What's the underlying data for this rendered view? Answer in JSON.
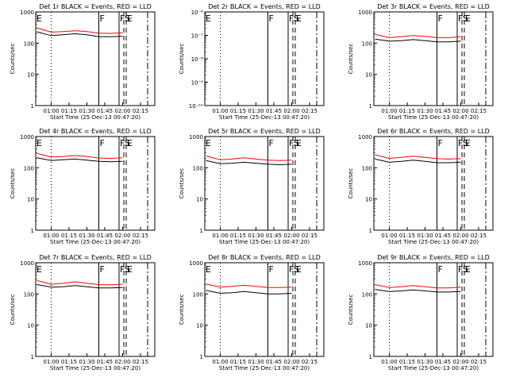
{
  "x_ticks": [
    "01:00",
    "01:15",
    "01:30",
    "01:45",
    "02:00",
    "02:15"
  ],
  "xlabel": "Start Time (25-Dec-13 00:47:20)",
  "ylabel": "Counts/sec",
  "colors": {
    "events": "#000000",
    "lld": "#ff0000",
    "axes": "#000000"
  },
  "chart_data": [
    {
      "type": "line",
      "title": "Det 1r BLACK = Events, RED = LLD",
      "xlabel": "Start Time (25-Dec-13 00:47:20)",
      "ylabel": "Counts/sec",
      "yscale": "log",
      "ylim": [
        1,
        1000
      ],
      "y_ticks": [
        "1",
        "10",
        "100",
        "1000"
      ],
      "markers": [
        {
          "label": "E",
          "x": "00:47"
        },
        {
          "label": "F",
          "x": "01:40"
        },
        {
          "label": "F",
          "x": "01:57"
        },
        {
          "label": "S",
          "x": "02:01"
        },
        {
          "label": "E",
          "x": "02:03"
        }
      ],
      "series": [
        {
          "name": "Events",
          "color": "#000000",
          "x": [
            "00:48",
            "01:00",
            "01:10",
            "01:20",
            "01:30",
            "01:40",
            "01:50",
            "02:00"
          ],
          "values": [
            230,
            175,
            185,
            200,
            185,
            160,
            160,
            165
          ]
        },
        {
          "name": "LLD",
          "color": "#ff0000",
          "x": [
            "00:48",
            "01:00",
            "01:10",
            "01:20",
            "01:30",
            "01:40",
            "01:50",
            "02:00"
          ],
          "values": [
            310,
            225,
            235,
            250,
            235,
            210,
            205,
            215
          ]
        }
      ]
    },
    {
      "type": "line",
      "title": "Det 2r BLACK = Events, RED = LLD",
      "xlabel": "Start Time (25-Dec-13 00:47:20)",
      "ylabel": "Counts/sec",
      "yscale": "log",
      "ylim": [
        1e-10,
        1e-06
      ],
      "y_ticks": [
        "10⁻¹⁰",
        "10⁻⁹",
        "10⁻⁸",
        "10⁻⁷",
        "10⁻⁶"
      ],
      "markers": [
        {
          "label": "E",
          "x": "00:47"
        },
        {
          "label": "F",
          "x": "01:40"
        },
        {
          "label": "F",
          "x": "01:57"
        },
        {
          "label": "S",
          "x": "02:01"
        },
        {
          "label": "E",
          "x": "02:03"
        }
      ],
      "series": []
    },
    {
      "type": "line",
      "title": "Det 3r BLACK = Events, RED = LLD",
      "xlabel": "Start Time (25-Dec-13 00:47:20)",
      "ylabel": "Counts/sec",
      "yscale": "log",
      "ylim": [
        1,
        1000
      ],
      "y_ticks": [
        "1",
        "10",
        "100",
        "1000"
      ],
      "markers": [
        {
          "label": "F",
          "x": "01:40"
        },
        {
          "label": "F",
          "x": "01:57"
        },
        {
          "label": "S",
          "x": "02:01"
        },
        {
          "label": "E",
          "x": "02:03"
        }
      ],
      "series": [
        {
          "name": "Events",
          "color": "#000000",
          "x": [
            "00:48",
            "01:00",
            "01:10",
            "01:20",
            "01:30",
            "01:40",
            "01:50",
            "02:00"
          ],
          "values": [
            135,
            115,
            120,
            130,
            120,
            110,
            110,
            115
          ]
        },
        {
          "name": "LLD",
          "color": "#ff0000",
          "x": [
            "00:48",
            "01:00",
            "01:10",
            "01:20",
            "01:30",
            "01:40",
            "01:50",
            "02:00"
          ],
          "values": [
            190,
            150,
            160,
            175,
            165,
            150,
            150,
            160
          ]
        }
      ]
    },
    {
      "type": "line",
      "title": "Det 4r BLACK = Events, RED = LLD",
      "xlabel": "Start Time (25-Dec-13 00:47:20)",
      "ylabel": "Counts/sec",
      "yscale": "log",
      "ylim": [
        1,
        1000
      ],
      "y_ticks": [
        "1",
        "10",
        "100",
        "1000"
      ],
      "markers": [
        {
          "label": "E",
          "x": "00:47"
        },
        {
          "label": "F",
          "x": "01:40"
        },
        {
          "label": "F",
          "x": "01:57"
        },
        {
          "label": "S",
          "x": "02:01"
        },
        {
          "label": "E",
          "x": "02:03"
        }
      ],
      "series": [
        {
          "name": "Events",
          "color": "#000000",
          "x": [
            "00:48",
            "01:00",
            "01:10",
            "01:20",
            "01:30",
            "01:40",
            "01:50",
            "02:00"
          ],
          "values": [
            210,
            170,
            180,
            190,
            175,
            160,
            155,
            160
          ]
        },
        {
          "name": "LLD",
          "color": "#ff0000",
          "x": [
            "00:48",
            "01:00",
            "01:10",
            "01:20",
            "01:30",
            "01:40",
            "01:50",
            "02:00"
          ],
          "values": [
            290,
            220,
            230,
            245,
            230,
            205,
            200,
            210
          ]
        }
      ]
    },
    {
      "type": "line",
      "title": "Det 5r BLACK = Events, RED = LLD",
      "xlabel": "Start Time (25-Dec-13 00:47:20)",
      "ylabel": "Counts/sec",
      "yscale": "log",
      "ylim": [
        1,
        1000
      ],
      "y_ticks": [
        "1",
        "10",
        "100",
        "1000"
      ],
      "markers": [
        {
          "label": "E",
          "x": "00:47"
        },
        {
          "label": "F",
          "x": "01:40"
        },
        {
          "label": "F",
          "x": "01:57"
        },
        {
          "label": "S",
          "x": "02:01"
        },
        {
          "label": "E",
          "x": "02:03"
        }
      ],
      "series": [
        {
          "name": "Events",
          "color": "#000000",
          "x": [
            "00:48",
            "01:00",
            "01:10",
            "01:20",
            "01:30",
            "01:40",
            "01:50",
            "02:00"
          ],
          "values": [
            170,
            135,
            140,
            150,
            140,
            130,
            125,
            130
          ]
        },
        {
          "name": "LLD",
          "color": "#ff0000",
          "x": [
            "00:48",
            "01:00",
            "01:10",
            "01:20",
            "01:30",
            "01:40",
            "01:50",
            "02:00"
          ],
          "values": [
            240,
            180,
            190,
            210,
            190,
            175,
            170,
            175
          ]
        }
      ]
    },
    {
      "type": "line",
      "title": "Det 6r BLACK = Events, RED = LLD",
      "xlabel": "Start Time (25-Dec-13 00:47:20)",
      "ylabel": "Counts/sec",
      "yscale": "log",
      "ylim": [
        1,
        1000
      ],
      "y_ticks": [
        "1",
        "10",
        "100",
        "1000"
      ],
      "markers": [
        {
          "label": "F",
          "x": "01:40"
        },
        {
          "label": "F",
          "x": "01:57"
        },
        {
          "label": "S",
          "x": "02:01"
        },
        {
          "label": "E",
          "x": "02:03"
        }
      ],
      "series": [
        {
          "name": "Events",
          "color": "#000000",
          "x": [
            "00:48",
            "01:00",
            "01:10",
            "01:20",
            "01:30",
            "01:40",
            "01:50",
            "02:00"
          ],
          "values": [
            190,
            150,
            160,
            175,
            160,
            145,
            145,
            150
          ]
        },
        {
          "name": "LLD",
          "color": "#ff0000",
          "x": [
            "00:48",
            "01:00",
            "01:10",
            "01:20",
            "01:30",
            "01:40",
            "01:50",
            "02:00"
          ],
          "values": [
            260,
            200,
            215,
            235,
            215,
            195,
            190,
            195
          ]
        }
      ]
    },
    {
      "type": "line",
      "title": "Det 7r BLACK = Events, RED = LLD",
      "xlabel": "Start Time (25-Dec-13 00:47:20)",
      "ylabel": "Counts/sec",
      "yscale": "log",
      "ylim": [
        1,
        1000
      ],
      "y_ticks": [
        "1",
        "10",
        "100",
        "1000"
      ],
      "markers": [
        {
          "label": "E",
          "x": "00:47"
        },
        {
          "label": "F",
          "x": "01:40"
        },
        {
          "label": "F",
          "x": "01:57"
        },
        {
          "label": "S",
          "x": "02:01"
        },
        {
          "label": "E",
          "x": "02:03"
        }
      ],
      "series": [
        {
          "name": "Events",
          "color": "#000000",
          "x": [
            "00:48",
            "01:00",
            "01:10",
            "01:20",
            "01:30",
            "01:40",
            "01:50",
            "02:00"
          ],
          "values": [
            200,
            165,
            170,
            185,
            170,
            155,
            155,
            160
          ]
        },
        {
          "name": "LLD",
          "color": "#ff0000",
          "x": [
            "00:48",
            "01:00",
            "01:10",
            "01:20",
            "01:30",
            "01:40",
            "01:50",
            "02:00"
          ],
          "values": [
            270,
            205,
            220,
            245,
            220,
            200,
            195,
            205
          ]
        }
      ]
    },
    {
      "type": "line",
      "title": "Det 8r BLACK = Events, RED = LLD",
      "xlabel": "Start Time (25-Dec-13 00:47:20)",
      "ylabel": "Counts/sec",
      "yscale": "log",
      "ylim": [
        1,
        1000
      ],
      "y_ticks": [
        "1",
        "10",
        "100",
        "1000"
      ],
      "markers": [
        {
          "label": "E",
          "x": "00:47"
        },
        {
          "label": "F",
          "x": "01:40"
        },
        {
          "label": "F",
          "x": "01:57"
        },
        {
          "label": "S",
          "x": "02:01"
        },
        {
          "label": "E",
          "x": "02:03"
        }
      ],
      "series": [
        {
          "name": "Events",
          "color": "#000000",
          "x": [
            "00:48",
            "01:00",
            "01:10",
            "01:20",
            "01:30",
            "01:40",
            "01:50",
            "02:00"
          ],
          "values": [
            130,
            105,
            110,
            120,
            110,
            100,
            100,
            105
          ]
        },
        {
          "name": "LLD",
          "color": "#ff0000",
          "x": [
            "00:48",
            "01:00",
            "01:10",
            "01:20",
            "01:30",
            "01:40",
            "01:50",
            "02:00"
          ],
          "values": [
            210,
            165,
            175,
            190,
            175,
            160,
            160,
            165
          ]
        }
      ]
    },
    {
      "type": "line",
      "title": "Det 9r BLACK = Events, RED = LLD",
      "xlabel": "Start Time (25-Dec-13 00:47:20)",
      "ylabel": "Counts/sec",
      "yscale": "log",
      "ylim": [
        1,
        1000
      ],
      "y_ticks": [
        "1",
        "10",
        "100",
        "1000"
      ],
      "markers": [
        {
          "label": "F",
          "x": "01:40"
        },
        {
          "label": "F",
          "x": "01:57"
        },
        {
          "label": "S",
          "x": "02:01"
        },
        {
          "label": "E",
          "x": "02:03"
        }
      ],
      "series": [
        {
          "name": "Events",
          "color": "#000000",
          "x": [
            "00:48",
            "01:00",
            "01:10",
            "01:20",
            "01:30",
            "01:40",
            "01:50",
            "02:00"
          ],
          "values": [
            140,
            120,
            125,
            135,
            125,
            115,
            115,
            120
          ]
        },
        {
          "name": "LLD",
          "color": "#ff0000",
          "x": [
            "00:48",
            "01:00",
            "01:10",
            "01:20",
            "01:30",
            "01:40",
            "01:50",
            "02:00"
          ],
          "values": [
            200,
            160,
            170,
            185,
            170,
            155,
            155,
            165
          ]
        }
      ]
    }
  ]
}
